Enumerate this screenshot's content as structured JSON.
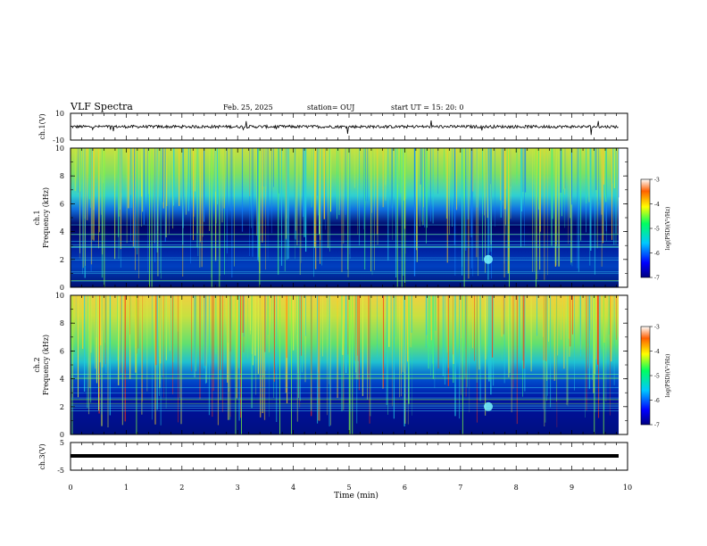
{
  "header": {
    "title": "VLF Spectra",
    "date": "Feb. 25, 2025",
    "station": "station= OUJ",
    "start": "start UT =  15: 20: 0"
  },
  "chart_data": [
    {
      "type": "line",
      "panel": "ch1-waveform",
      "ylabel": "ch.1(V)",
      "yticks": [
        "10",
        "-10"
      ],
      "ylim": [
        -10,
        10
      ],
      "xlim": [
        0,
        10
      ]
    },
    {
      "type": "heatmap",
      "panel": "ch1-spectrogram",
      "ylabel_line1": "ch.1",
      "ylabel_line2": "Frequency (kHz)",
      "yticks": [
        "0",
        "2",
        "4",
        "6",
        "8",
        "10"
      ],
      "ylim": [
        0,
        10
      ],
      "colorbar": {
        "label": "log(PSD)(V²/Hz)",
        "ticks": [
          "-3",
          "-4",
          "-5",
          "-6",
          "-7"
        ],
        "range": [
          -7,
          -3
        ]
      }
    },
    {
      "type": "heatmap",
      "panel": "ch2-spectrogram",
      "ylabel_line1": "ch.2",
      "ylabel_line2": "Frequency (kHz)",
      "yticks": [
        "0",
        "2",
        "4",
        "6",
        "8",
        "10"
      ],
      "ylim": [
        0,
        10
      ],
      "colorbar": {
        "label": "log(PSD)(V²/Hz)",
        "ticks": [
          "-3",
          "-4",
          "-5",
          "-6",
          "-7"
        ],
        "range": [
          -7,
          -3
        ]
      }
    },
    {
      "type": "line",
      "panel": "ch3-waveform",
      "ylabel": "ch.3(V)",
      "yticks": [
        "5",
        "-5"
      ],
      "ylim": [
        -5,
        5
      ],
      "xlabel": "Time (min)",
      "xticks": [
        "0",
        "1",
        "2",
        "3",
        "4",
        "5",
        "6",
        "7",
        "8",
        "9",
        "10"
      ],
      "xlim": [
        0,
        10
      ]
    }
  ]
}
